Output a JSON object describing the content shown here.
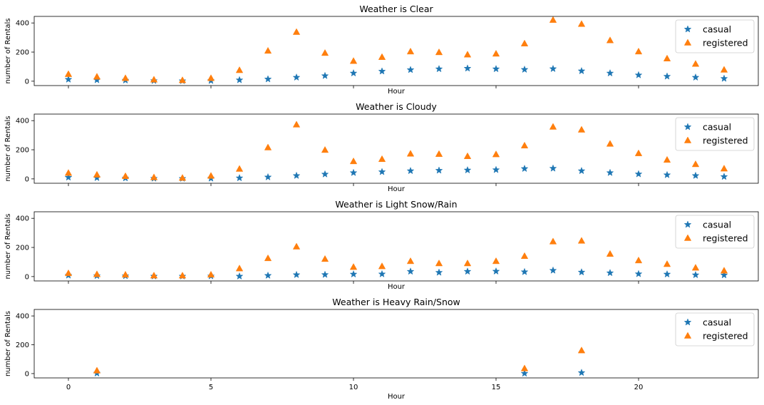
{
  "chart_data": [
    {
      "type": "scatter",
      "title": "Weather is Clear",
      "xlabel": "Hour",
      "ylabel": "number of Rentals",
      "xlim": [
        -1.2,
        24.2
      ],
      "ylim": [
        -30,
        445
      ],
      "xticks": [
        0,
        5,
        10,
        15,
        20
      ],
      "yticks": [
        0,
        200,
        400
      ],
      "show_xtick_labels": false,
      "grid": false,
      "legend": "top-right",
      "series": [
        {
          "name": "casual",
          "marker": "star",
          "color": "#1f77b4",
          "x": [
            0,
            1,
            2,
            3,
            4,
            5,
            6,
            7,
            8,
            9,
            10,
            11,
            12,
            13,
            14,
            15,
            16,
            17,
            18,
            19,
            20,
            21,
            22,
            23
          ],
          "y": [
            12,
            8,
            6,
            3,
            2,
            3,
            8,
            14,
            26,
            37,
            55,
            68,
            78,
            84,
            88,
            84,
            80,
            85,
            70,
            55,
            42,
            33,
            26,
            18
          ]
        },
        {
          "name": "registered",
          "marker": "triangle",
          "color": "#ff7f0e",
          "x": [
            0,
            1,
            2,
            3,
            4,
            5,
            6,
            7,
            8,
            9,
            10,
            11,
            12,
            13,
            14,
            15,
            16,
            17,
            18,
            19,
            20,
            21,
            22,
            23
          ],
          "y": [
            48,
            30,
            20,
            10,
            6,
            20,
            75,
            208,
            337,
            193,
            138,
            165,
            203,
            198,
            182,
            188,
            258,
            420,
            392,
            280,
            203,
            155,
            118,
            78
          ]
        }
      ]
    },
    {
      "type": "scatter",
      "title": "Weather is Cloudy",
      "xlabel": "Hour",
      "ylabel": "number of Rentals",
      "xlim": [
        -1.2,
        24.2
      ],
      "ylim": [
        -30,
        445
      ],
      "xticks": [
        0,
        5,
        10,
        15,
        20
      ],
      "yticks": [
        0,
        200,
        400
      ],
      "show_xtick_labels": false,
      "grid": false,
      "legend": "top-right",
      "series": [
        {
          "name": "casual",
          "marker": "star",
          "color": "#1f77b4",
          "x": [
            0,
            1,
            2,
            3,
            4,
            5,
            6,
            7,
            8,
            9,
            10,
            11,
            12,
            13,
            14,
            15,
            16,
            17,
            18,
            19,
            20,
            21,
            22,
            23
          ],
          "y": [
            10,
            7,
            5,
            3,
            2,
            3,
            6,
            12,
            22,
            32,
            42,
            48,
            55,
            58,
            60,
            62,
            70,
            72,
            55,
            42,
            33,
            27,
            22,
            15
          ]
        },
        {
          "name": "registered",
          "marker": "triangle",
          "color": "#ff7f0e",
          "x": [
            0,
            1,
            2,
            3,
            4,
            5,
            6,
            7,
            8,
            9,
            10,
            11,
            12,
            13,
            14,
            15,
            16,
            17,
            18,
            19,
            20,
            21,
            22,
            23
          ],
          "y": [
            40,
            28,
            18,
            10,
            6,
            20,
            68,
            215,
            372,
            198,
            120,
            135,
            172,
            170,
            155,
            168,
            228,
            357,
            337,
            240,
            175,
            130,
            100,
            70
          ]
        }
      ]
    },
    {
      "type": "scatter",
      "title": "Weather is Light Snow/Rain",
      "xlabel": "Hour",
      "ylabel": "number of Rentals",
      "xlim": [
        -1.2,
        24.2
      ],
      "ylim": [
        -30,
        445
      ],
      "xticks": [
        0,
        5,
        10,
        15,
        20
      ],
      "yticks": [
        0,
        200,
        400
      ],
      "show_xtick_labels": false,
      "grid": false,
      "legend": "top-right",
      "series": [
        {
          "name": "casual",
          "marker": "star",
          "color": "#1f77b4",
          "x": [
            0,
            1,
            2,
            3,
            4,
            5,
            6,
            7,
            8,
            9,
            10,
            11,
            12,
            13,
            14,
            15,
            16,
            17,
            18,
            19,
            20,
            21,
            22,
            23
          ],
          "y": [
            8,
            5,
            4,
            2,
            2,
            3,
            2,
            7,
            12,
            13,
            16,
            17,
            35,
            28,
            35,
            36,
            32,
            42,
            30,
            25,
            18,
            16,
            11,
            10
          ]
        },
        {
          "name": "registered",
          "marker": "triangle",
          "color": "#ff7f0e",
          "x": [
            0,
            1,
            2,
            3,
            4,
            5,
            6,
            7,
            8,
            9,
            10,
            11,
            12,
            13,
            14,
            15,
            16,
            17,
            18,
            19,
            20,
            21,
            22,
            23
          ],
          "y": [
            22,
            15,
            12,
            6,
            6,
            12,
            55,
            125,
            205,
            120,
            65,
            70,
            105,
            90,
            90,
            105,
            140,
            240,
            245,
            155,
            110,
            85,
            60,
            40
          ]
        }
      ]
    },
    {
      "type": "scatter",
      "title": "Weather is Heavy Rain/Snow",
      "xlabel": "Hour",
      "ylabel": "number of Rentals",
      "xlim": [
        -1.2,
        24.2
      ],
      "ylim": [
        -30,
        445
      ],
      "xticks": [
        0,
        5,
        10,
        15,
        20
      ],
      "yticks": [
        0,
        200,
        400
      ],
      "show_xtick_labels": true,
      "grid": false,
      "legend": "top-right",
      "series": [
        {
          "name": "casual",
          "marker": "star",
          "color": "#1f77b4",
          "x": [
            1,
            16,
            18
          ],
          "y": [
            2,
            1,
            6
          ]
        },
        {
          "name": "registered",
          "marker": "triangle",
          "color": "#ff7f0e",
          "x": [
            1,
            16,
            18
          ],
          "y": [
            20,
            35,
            160
          ]
        }
      ]
    }
  ]
}
